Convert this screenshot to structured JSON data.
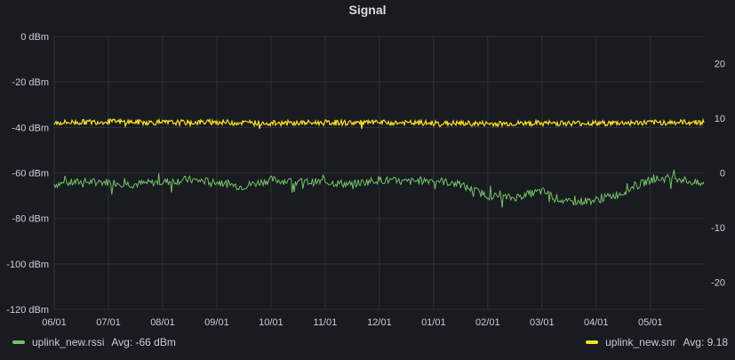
{
  "panel": {
    "title": "Signal"
  },
  "colors": {
    "rssi": "#73bf69",
    "snr": "#fade2a",
    "background": "#181b1f"
  },
  "legend": {
    "rssi": {
      "name": "uplink_new.rssi",
      "stat": "Avg: -66 dBm"
    },
    "snr": {
      "name": "uplink_new.snr",
      "stat": "Avg: 9.18"
    }
  },
  "chart_data": {
    "type": "line",
    "title": "Signal",
    "x_ticks": [
      "06/01",
      "07/01",
      "08/01",
      "09/01",
      "10/01",
      "11/01",
      "12/01",
      "01/01",
      "02/01",
      "03/01",
      "04/01",
      "05/01"
    ],
    "x_range": [
      "06/01",
      "05/29"
    ],
    "y_left": {
      "unit": "dBm",
      "ylim": [
        -120,
        0
      ],
      "ticks": [
        "0 dBm",
        "-20 dBm",
        "-40 dBm",
        "-60 dBm",
        "-80 dBm",
        "-100 dBm",
        "-120 dBm"
      ]
    },
    "y_right": {
      "ylim": [
        -25,
        25
      ],
      "ticks": [
        "20",
        "10",
        "0",
        "-10",
        "-20"
      ]
    },
    "grid": true,
    "legend_position": "bottom",
    "series": [
      {
        "name": "uplink_new.rssi",
        "axis": "left",
        "color": "#73bf69",
        "avg": -66,
        "x": [
          "06/01",
          "06/15",
          "07/01",
          "07/15",
          "08/01",
          "08/15",
          "09/01",
          "09/15",
          "10/01",
          "10/15",
          "11/01",
          "11/15",
          "12/01",
          "12/15",
          "01/01",
          "01/15",
          "02/01",
          "02/15",
          "03/01",
          "03/15",
          "04/01",
          "04/15",
          "05/01",
          "05/15",
          "05/29"
        ],
        "values": [
          -65,
          -64,
          -64,
          -65,
          -64,
          -63,
          -64,
          -66,
          -63,
          -64,
          -64,
          -65,
          -63,
          -64,
          -63,
          -65,
          -70,
          -71,
          -68,
          -73,
          -72,
          -69,
          -63,
          -62,
          -65
        ]
      },
      {
        "name": "uplink_new.snr",
        "axis": "right",
        "color": "#fade2a",
        "avg": 9.18,
        "x": [
          "06/01",
          "07/01",
          "08/01",
          "09/01",
          "10/01",
          "11/01",
          "12/01",
          "01/01",
          "02/01",
          "03/01",
          "04/01",
          "05/01",
          "05/29"
        ],
        "values": [
          9.2,
          9.4,
          9.2,
          9.3,
          9.1,
          9.2,
          9.2,
          9.1,
          9.0,
          9.1,
          9.1,
          9.2,
          9.3
        ]
      }
    ]
  }
}
